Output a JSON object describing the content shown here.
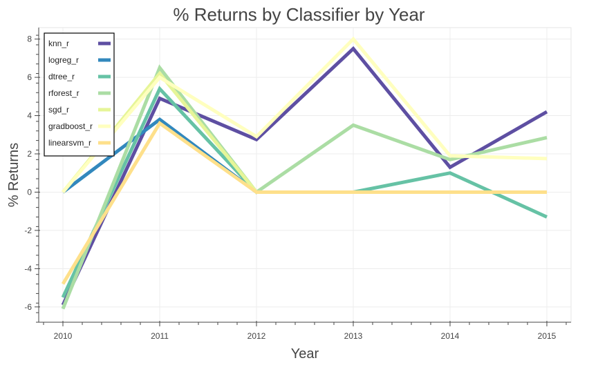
{
  "chart_data": {
    "type": "line",
    "title": "% Returns by Classifier by Year",
    "xlabel": "Year",
    "ylabel": "% Returns",
    "x": [
      2010,
      2011,
      2012,
      2013,
      2014,
      2015
    ],
    "xlim": [
      2009.75,
      2015.25
    ],
    "ylim": [
      -6.8,
      8.6
    ],
    "yticks": [
      -6,
      -4,
      -2,
      0,
      2,
      4,
      6,
      8
    ],
    "ytick_labels": [
      "-6",
      "-4",
      "-2",
      "0",
      "2",
      "4",
      "6",
      "8"
    ],
    "xtick_labels": [
      "2010",
      "2011",
      "2012",
      "2013",
      "2014",
      "2015"
    ],
    "grid": true,
    "legend_position": "top-left",
    "series": [
      {
        "name": "knn_r",
        "color": "#5e4fa2",
        "values": [
          -5.9,
          4.9,
          2.75,
          7.5,
          1.3,
          4.2
        ]
      },
      {
        "name": "logreg_r",
        "color": "#3288bd",
        "values": [
          0,
          3.8,
          0,
          0,
          0,
          0
        ]
      },
      {
        "name": "dtree_r",
        "color": "#66c2a5",
        "values": [
          -5.5,
          5.4,
          0,
          0,
          1.0,
          -1.3
        ]
      },
      {
        "name": "rforest_r",
        "color": "#abdda4",
        "values": [
          -6.1,
          6.5,
          0,
          3.5,
          1.7,
          2.85
        ]
      },
      {
        "name": "sgd_r",
        "color": "#e6f598",
        "values": [
          0,
          6.2,
          0,
          0,
          0,
          0
        ]
      },
      {
        "name": "gradboost_r",
        "color": "#ffffbf",
        "values": [
          0,
          6.0,
          2.9,
          8.0,
          1.9,
          1.75
        ]
      },
      {
        "name": "linearsvm_r",
        "color": "#fee08b",
        "values": [
          -4.8,
          3.6,
          0,
          0,
          0,
          0
        ]
      }
    ]
  }
}
